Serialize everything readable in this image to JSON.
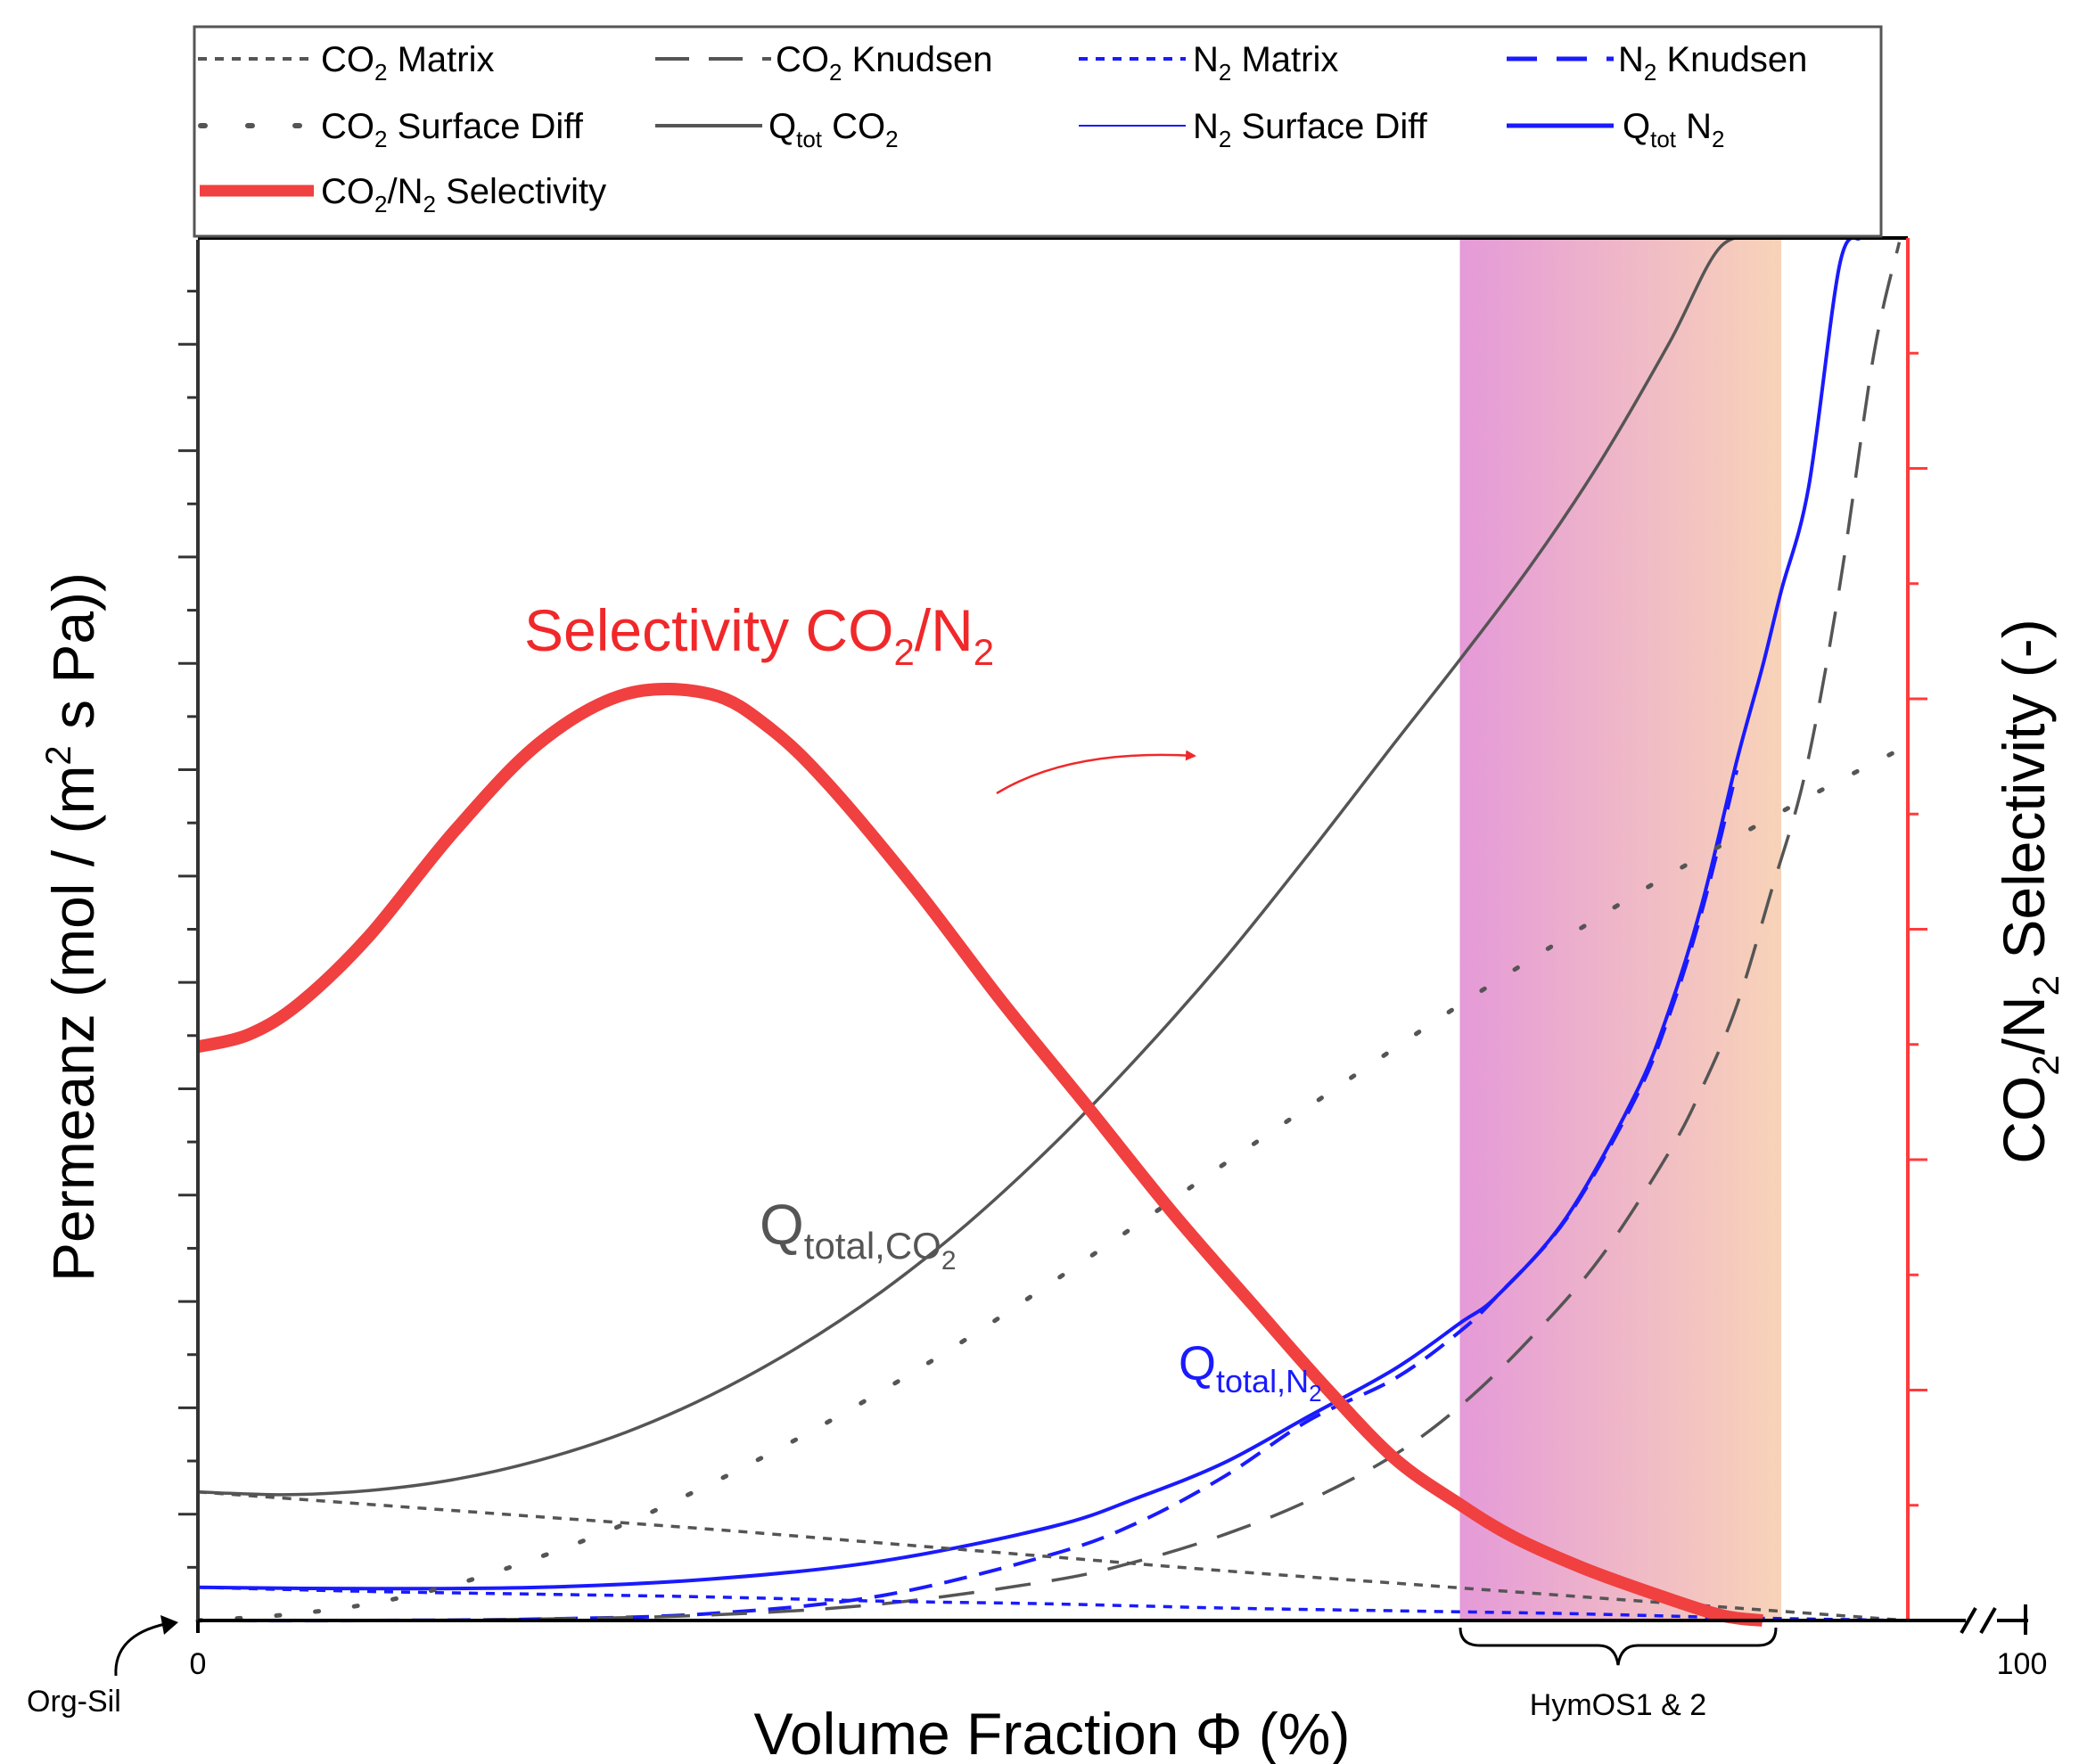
{
  "chart_data": {
    "type": "line",
    "axes": {
      "x": {
        "label_main": "Volume Fraction ",
        "label_symbol": "Φ",
        "label_unit": " (%)",
        "xlim": [
          0,
          100
        ],
        "tick_start": "0",
        "tick_end": "100",
        "start_annotation": "Org-Sil",
        "range_annotation": "HymOS1 & 2",
        "axis_break": true
      },
      "y_left": {
        "label_pre": "Permeanz (mol / (m",
        "label_sup": "2",
        "label_post": " s Pa))",
        "ylim": [
          0,
          1
        ],
        "tick_labels": false
      },
      "y_right": {
        "label_a": "CO",
        "label_sub1": "2",
        "label_b": "/N",
        "label_sub2": "2",
        "label_c": " Selectivity (-)",
        "ylim": [
          0,
          1
        ],
        "color": "#ff3b3b",
        "tick_labels": false
      }
    },
    "highlight": {
      "x_start": 73.8,
      "x_end": 92.6,
      "color_start": "#e59ad8",
      "color_end": "#f8d3b8",
      "label": "HymOS1 & 2"
    },
    "annotations": {
      "selectivity_title": {
        "text": "Selectivity CO",
        "sub": "2",
        "rest": "/N",
        "sub2": "2",
        "color": "#f0282a"
      },
      "q_co2": {
        "main": "Q",
        "sub": "total,CO",
        "subsub": "2",
        "color": "#555555"
      },
      "q_n2": {
        "main": "Q",
        "sub": "total,N",
        "subsub": "2",
        "color": "#1a1aff"
      }
    },
    "legend": {
      "position": "top",
      "entries": [
        {
          "key": "co2_matrix",
          "pre": "CO",
          "sub": "2",
          "post": " Matrix"
        },
        {
          "key": "co2_knudsen",
          "pre": "CO",
          "sub": "2",
          "post": " Knudsen"
        },
        {
          "key": "n2_matrix",
          "pre": "N",
          "sub": "2",
          "post": " Matrix"
        },
        {
          "key": "n2_knudsen",
          "pre": "N",
          "sub": "2",
          "post": " Knudsen"
        },
        {
          "key": "co2_surface",
          "pre": "CO",
          "sub": "2",
          "post": " Surface Diff"
        },
        {
          "key": "qtot_co2",
          "pre": "Q",
          "sub": "tot",
          "post": " CO",
          "sub2": "2"
        },
        {
          "key": "n2_surface",
          "pre": "N",
          "sub": "2",
          "post": " Surface Diff"
        },
        {
          "key": "qtot_n2",
          "pre": "Q",
          "sub": "tot",
          "post": " N",
          "sub2": "2"
        },
        {
          "key": "selectivity",
          "pre": "CO",
          "sub": "2",
          "post": "/N",
          "sub2": "2",
          "tail": " Selectivity"
        }
      ]
    },
    "series": [
      {
        "key": "qtot_co2",
        "name": "Qtot CO2",
        "color": "#555555",
        "style": "solid",
        "width": 3.5,
        "x": [
          0,
          5,
          10,
          15,
          20,
          25,
          30,
          35,
          40,
          45,
          50,
          55,
          60,
          65,
          70,
          73.8,
          78,
          82,
          86,
          89,
          91.5
        ],
        "y": [
          0.093,
          0.091,
          0.094,
          0.102,
          0.116,
          0.136,
          0.163,
          0.197,
          0.238,
          0.287,
          0.344,
          0.408,
          0.478,
          0.555,
          0.635,
          0.695,
          0.764,
          0.838,
          0.923,
          0.993,
          1.02
        ]
      },
      {
        "key": "qtot_n2",
        "name": "Qtot N2",
        "color": "#1a1aff",
        "style": "solid",
        "width": 4,
        "x": [
          0,
          10,
          20,
          30,
          40,
          50,
          55,
          60,
          65,
          70,
          73.8,
          76,
          80,
          84,
          86,
          88,
          90,
          91.5,
          92.6,
          94.2,
          96,
          97.2
        ],
        "y": [
          0.024,
          0.023,
          0.024,
          0.03,
          0.043,
          0.068,
          0.089,
          0.114,
          0.148,
          0.182,
          0.215,
          0.235,
          0.291,
          0.379,
          0.44,
          0.52,
          0.622,
          0.69,
          0.745,
          0.82,
          0.98,
          1.02
        ]
      },
      {
        "key": "n2_knudsen",
        "name": "N2 Knudsen",
        "color": "#1a1aff",
        "style": "dash",
        "width": 4,
        "x": [
          0,
          10,
          20,
          30,
          40,
          50,
          55,
          60,
          65,
          70,
          73.8,
          76,
          80,
          84,
          86,
          88,
          90
        ],
        "y": [
          0,
          0.0,
          0.001,
          0.005,
          0.018,
          0.048,
          0.071,
          0.104,
          0.145,
          0.175,
          0.209,
          0.235,
          0.29,
          0.376,
          0.436,
          0.515,
          0.615
        ]
      },
      {
        "key": "co2_knudsen",
        "name": "CO2 Knudsen",
        "color": "#555555",
        "style": "longdash",
        "width": 3.5,
        "x": [
          0,
          10,
          20,
          30,
          40,
          50,
          55,
          60,
          65,
          70,
          74,
          78,
          82,
          86,
          88,
          90,
          92,
          94,
          96,
          98,
          99.5
        ],
        "y": [
          0,
          0.0,
          0.001,
          0.004,
          0.012,
          0.029,
          0.043,
          0.062,
          0.087,
          0.12,
          0.157,
          0.205,
          0.262,
          0.338,
          0.386,
          0.445,
          0.527,
          0.613,
          0.747,
          0.915,
          0.997
        ]
      },
      {
        "key": "co2_surface",
        "name": "CO2 Surface Diff",
        "color": "#555555",
        "style": "dot",
        "width": 5,
        "x": [
          0,
          5,
          10,
          15,
          20,
          25,
          30,
          35,
          40,
          45,
          50,
          55,
          60,
          65,
          70,
          75,
          80,
          85,
          90,
          95,
          100
        ],
        "y": [
          0,
          0.004,
          0.012,
          0.026,
          0.046,
          0.07,
          0.099,
          0.131,
          0.166,
          0.204,
          0.245,
          0.287,
          0.33,
          0.372,
          0.414,
          0.455,
          0.494,
          0.532,
          0.567,
          0.601,
          0.633
        ]
      },
      {
        "key": "co2_matrix",
        "name": "CO2 Matrix",
        "color": "#555555",
        "style": "shortdash",
        "width": 3.5,
        "x": [
          0,
          10,
          20,
          30,
          40,
          50,
          60,
          70,
          80,
          90,
          100
        ],
        "y": [
          0.093,
          0.084,
          0.075,
          0.066,
          0.056,
          0.046,
          0.036,
          0.027,
          0.018,
          0.009,
          0
        ]
      },
      {
        "key": "n2_matrix",
        "name": "N2 Matrix",
        "color": "#1a1aff",
        "style": "shortdash",
        "width": 3.5,
        "x": [
          0,
          10,
          20,
          30,
          40,
          50,
          60,
          70,
          80,
          90,
          100
        ],
        "y": [
          0.024,
          0.021,
          0.019,
          0.017,
          0.014,
          0.012,
          0.009,
          0.007,
          0.005,
          0.002,
          0
        ]
      },
      {
        "key": "n2_surface",
        "name": "N2 Surface Diff",
        "color": "#1a1aff",
        "style": "solid",
        "width": 1.5,
        "x": [
          0,
          20,
          40,
          60,
          80,
          100
        ],
        "y": [
          0,
          0,
          0,
          0,
          0,
          0
        ]
      },
      {
        "key": "selectivity",
        "name": "CO2/N2 Selectivity",
        "color": "#f04040",
        "style": "solid",
        "width": 14,
        "axis": "right",
        "x": [
          0,
          3,
          6,
          10,
          15,
          20,
          25,
          30,
          33.5,
          37,
          42,
          47,
          52,
          57,
          62,
          66,
          70,
          73.8,
          77,
          81,
          85,
          89,
          91.5
        ],
        "y": [
          0.415,
          0.424,
          0.447,
          0.495,
          0.571,
          0.635,
          0.67,
          0.67,
          0.645,
          0.603,
          0.529,
          0.448,
          0.372,
          0.295,
          0.224,
          0.168,
          0.117,
          0.084,
          0.06,
          0.038,
          0.02,
          0.004,
          0
        ]
      }
    ]
  }
}
